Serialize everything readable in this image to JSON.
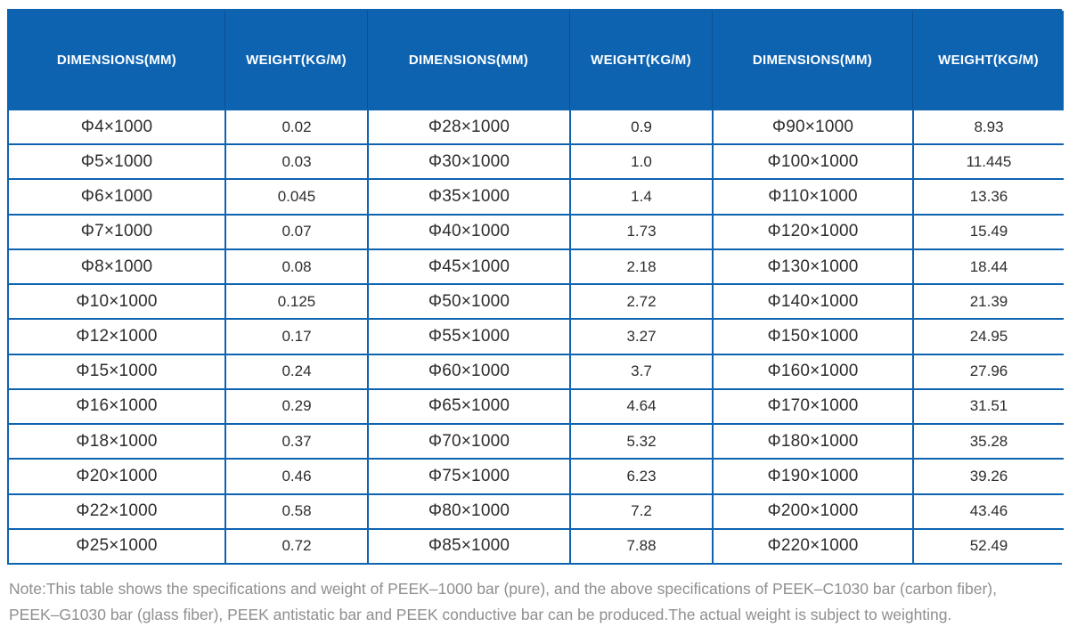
{
  "theme": {
    "header_blue": "#0e63b1",
    "border_blue": "#0e63b1",
    "header_separator": "#0a5093",
    "cell_text": "#2d2d2d",
    "note_gray": "#8f8f8f",
    "page_bg": "#ffffff"
  },
  "table": {
    "columns": [
      {
        "label": "DIMENSIONS(MM)"
      },
      {
        "label": "WEIGHT(KG/M)"
      },
      {
        "label": "DIMENSIONS(MM)"
      },
      {
        "label": "WEIGHT(KG/M)"
      },
      {
        "label": "DIMENSIONS(MM)"
      },
      {
        "label": "WEIGHT(KG/M)"
      }
    ],
    "rows": [
      {
        "cells": [
          "Φ4×1000",
          "0.02",
          "Φ28×1000",
          "0.9",
          "Φ90×1000",
          "8.93"
        ]
      },
      {
        "cells": [
          "Φ5×1000",
          "0.03",
          "Φ30×1000",
          "1.0",
          "Φ100×1000",
          "11.445"
        ]
      },
      {
        "cells": [
          "Φ6×1000",
          "0.045",
          "Φ35×1000",
          "1.4",
          "Φ110×1000",
          "13.36"
        ]
      },
      {
        "cells": [
          "Φ7×1000",
          "0.07",
          "Φ40×1000",
          "1.73",
          "Φ120×1000",
          "15.49"
        ]
      },
      {
        "cells": [
          "Φ8×1000",
          "0.08",
          "Φ45×1000",
          "2.18",
          "Φ130×1000",
          "18.44"
        ]
      },
      {
        "cells": [
          "Φ10×1000",
          "0.125",
          "Φ50×1000",
          "2.72",
          "Φ140×1000",
          "21.39"
        ]
      },
      {
        "cells": [
          "Φ12×1000",
          "0.17",
          "Φ55×1000",
          "3.27",
          "Φ150×1000",
          "24.95"
        ]
      },
      {
        "cells": [
          "Φ15×1000",
          "0.24",
          "Φ60×1000",
          "3.7",
          "Φ160×1000",
          "27.96"
        ]
      },
      {
        "cells": [
          "Φ16×1000",
          "0.29",
          "Φ65×1000",
          "4.64",
          "Φ170×1000",
          "31.51"
        ]
      },
      {
        "cells": [
          "Φ18×1000",
          "0.37",
          "Φ70×1000",
          "5.32",
          "Φ180×1000",
          "35.28"
        ]
      },
      {
        "cells": [
          "Φ20×1000",
          "0.46",
          "Φ75×1000",
          "6.23",
          "Φ190×1000",
          "39.26"
        ]
      },
      {
        "cells": [
          "Φ22×1000",
          "0.58",
          "Φ80×1000",
          "7.2",
          "Φ200×1000",
          "43.46"
        ]
      },
      {
        "cells": [
          "Φ25×1000",
          "0.72",
          "Φ85×1000",
          "7.88",
          "Φ220×1000",
          "52.49"
        ]
      }
    ]
  },
  "note": {
    "lines": [
      "Note:This table shows the specifications and weight of PEEK–1000 bar (pure), and the above specifications of PEEK–C1030 bar (carbon fiber),",
      "PEEK–G1030 bar (glass fiber), PEEK antistatic bar and PEEK conductive bar can be produced.The actual weight is subject to weighting."
    ]
  }
}
